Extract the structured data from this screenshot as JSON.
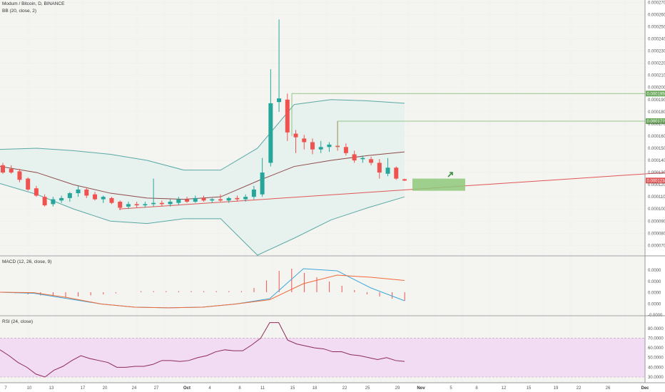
{
  "header": {
    "symbol_line": "Modum / Bitcoin, D, BINANCE",
    "bb_label": "BB (20, close, 2)",
    "macd_label": "MACD (12, 26, close, 9)",
    "rsi_label": "RSI (24, close)"
  },
  "colors": {
    "up": "#26a69a",
    "down": "#ef5350",
    "bb_band": "#5aa9a4",
    "bb_basis": "#8d4a4a",
    "bb_fill": "#e6f2ee",
    "trendline": "#e05555",
    "zone": "#8fc87a",
    "price_line": "#7ab86a",
    "macd_line": "#3fa8d8",
    "signal_line": "#f06a3a",
    "rsi_line": "#8e2a5a",
    "rsi_band": "#f1dcf3",
    "grid": "#eeeeee"
  },
  "chart_data": [
    {
      "type": "candlestick",
      "panel": "price",
      "yaxis_ticks": [
        "0.0002700",
        "0.0002600",
        "0.0002500",
        "0.0002400",
        "0.0002300",
        "0.0002200",
        "0.0002100",
        "0.0002000",
        "0.0001900",
        "0.0001800",
        "0.0001700",
        "0.0001600",
        "0.0001500",
        "0.0001400",
        "0.0001300",
        "0.0001200",
        "0.0001100",
        "0.0001000",
        "0.0000900",
        "0.0000800",
        "0.0000700"
      ],
      "ylim": [
        6.2e-05,
        0.000272
      ],
      "xaxis_ticks": [
        "7",
        "10",
        "13",
        "17",
        "20",
        "24",
        "27",
        "Oct",
        "4",
        "8",
        "11",
        "15",
        "18",
        "22",
        "25",
        "29",
        "Nov",
        "5",
        "8",
        "12",
        "15",
        "19",
        "22",
        "26",
        "Dec"
      ],
      "price_labels": [
        "0.0001950",
        "0.0001723",
        "0.0001234"
      ],
      "candles": [
        {
          "o": 0.000136,
          "h": 0.000138,
          "l": 0.000129,
          "c": 0.00013
        },
        {
          "o": 0.000133,
          "h": 0.000136,
          "l": 0.000129,
          "c": 0.00013
        },
        {
          "o": 0.000131,
          "h": 0.000133,
          "l": 0.000122,
          "c": 0.000124
        },
        {
          "o": 0.000125,
          "h": 0.000126,
          "l": 0.000115,
          "c": 0.000116
        },
        {
          "o": 0.000117,
          "h": 0.000119,
          "l": 0.00011,
          "c": 0.000111
        },
        {
          "o": 0.00011,
          "h": 0.000112,
          "l": 0.000102,
          "c": 0.000103
        },
        {
          "o": 0.000104,
          "h": 0.00011,
          "l": 0.000102,
          "c": 0.000108
        },
        {
          "o": 0.000107,
          "h": 0.000111,
          "l": 0.000105,
          "c": 0.000109
        },
        {
          "o": 0.000109,
          "h": 0.000114,
          "l": 0.000106,
          "c": 0.000113
        },
        {
          "o": 0.000113,
          "h": 0.000119,
          "l": 0.00011,
          "c": 0.000116
        },
        {
          "o": 0.000116,
          "h": 0.000118,
          "l": 0.000109,
          "c": 0.000111
        },
        {
          "o": 0.000112,
          "h": 0.000114,
          "l": 0.000107,
          "c": 0.000108
        },
        {
          "o": 0.000108,
          "h": 0.000111,
          "l": 0.000105,
          "c": 0.00011
        },
        {
          "o": 0.000109,
          "h": 0.00011,
          "l": 0.000104,
          "c": 0.000105
        },
        {
          "o": 0.000106,
          "h": 0.000107,
          "l": 9.9e-05,
          "c": 0.000101
        },
        {
          "o": 0.000102,
          "h": 0.000106,
          "l": 0.0001,
          "c": 0.000104
        },
        {
          "o": 0.000104,
          "h": 0.000106,
          "l": 0.000101,
          "c": 0.000103
        },
        {
          "o": 0.000103,
          "h": 0.000106,
          "l": 0.000101,
          "c": 0.000104
        },
        {
          "o": 0.000104,
          "h": 0.000125,
          "l": 0.000102,
          "c": 0.000105
        },
        {
          "o": 0.000105,
          "h": 0.000107,
          "l": 0.000102,
          "c": 0.000104
        },
        {
          "o": 0.000104,
          "h": 0.000108,
          "l": 0.000102,
          "c": 0.000106
        },
        {
          "o": 0.000105,
          "h": 0.00011,
          "l": 0.000103,
          "c": 0.000108
        },
        {
          "o": 0.000108,
          "h": 0.00011,
          "l": 0.000105,
          "c": 0.000106
        },
        {
          "o": 0.000106,
          "h": 0.000111,
          "l": 0.000105,
          "c": 0.000109
        },
        {
          "o": 0.000109,
          "h": 0.000111,
          "l": 0.000106,
          "c": 0.000107
        },
        {
          "o": 0.000107,
          "h": 0.000109,
          "l": 0.000105,
          "c": 0.000108
        },
        {
          "o": 0.000108,
          "h": 0.000112,
          "l": 0.000106,
          "c": 0.000107
        },
        {
          "o": 0.000107,
          "h": 0.00011,
          "l": 0.000105,
          "c": 0.000109
        },
        {
          "o": 0.000109,
          "h": 0.000111,
          "l": 0.000106,
          "c": 0.000108
        },
        {
          "o": 0.000108,
          "h": 0.000112,
          "l": 0.000106,
          "c": 0.00011
        },
        {
          "o": 0.00011,
          "h": 0.000119,
          "l": 0.000108,
          "c": 0.000116
        },
        {
          "o": 0.000112,
          "h": 0.000142,
          "l": 0.00011,
          "c": 0.00013
        },
        {
          "o": 0.000138,
          "h": 0.000215,
          "l": 0.000135,
          "c": 0.000187
        },
        {
          "o": 0.000188,
          "h": 0.000256,
          "l": 0.00018,
          "c": 0.000191
        },
        {
          "o": 0.00019,
          "h": 0.000195,
          "l": 0.000156,
          "c": 0.000163
        },
        {
          "o": 0.000162,
          "h": 0.000165,
          "l": 0.000146,
          "c": 0.000159
        },
        {
          "o": 0.000158,
          "h": 0.000161,
          "l": 0.000149,
          "c": 0.000155
        },
        {
          "o": 0.000155,
          "h": 0.000158,
          "l": 0.000145,
          "c": 0.000149
        },
        {
          "o": 0.000149,
          "h": 0.000156,
          "l": 0.000146,
          "c": 0.000151
        },
        {
          "o": 0.000151,
          "h": 0.000155,
          "l": 0.000147,
          "c": 0.000153
        },
        {
          "o": 0.000152,
          "h": 0.0001723,
          "l": 0.000148,
          "c": 0.000151
        },
        {
          "o": 0.000151,
          "h": 0.000154,
          "l": 0.000144,
          "c": 0.000146
        },
        {
          "o": 0.000145,
          "h": 0.000148,
          "l": 0.000138,
          "c": 0.00014
        },
        {
          "o": 0.000141,
          "h": 0.000144,
          "l": 0.000138,
          "c": 0.000142
        },
        {
          "o": 0.000141,
          "h": 0.000143,
          "l": 0.000136,
          "c": 0.000138
        },
        {
          "o": 0.000138,
          "h": 0.000141,
          "l": 0.000125,
          "c": 0.00013
        },
        {
          "o": 0.000129,
          "h": 0.000142,
          "l": 0.000127,
          "c": 0.000134
        },
        {
          "o": 0.000134,
          "h": 0.000135,
          "l": 0.000124,
          "c": 0.000125
        },
        {
          "o": 0.0001245,
          "h": 0.000125,
          "l": 0.000123,
          "c": 0.0001234
        }
      ],
      "bollinger": {
        "upper": [
          0.000149,
          0.00015,
          0.000148,
          0.000145,
          0.00014,
          0.000132,
          0.000132,
          0.00015,
          0.000186,
          0.00019,
          0.000189,
          0.000187
        ],
        "basis": [
          0.000135,
          0.00013,
          0.00012,
          0.000113,
          0.000109,
          0.000108,
          0.00011,
          0.000123,
          0.000135,
          0.00014,
          0.000144,
          0.000147
        ],
        "lower": [
          0.000121,
          0.000112,
          0.0001,
          9e-05,
          8.8e-05,
          9.2e-05,
          9.2e-05,
          6.2e-05,
          7.6e-05,
          9.1e-05,
          0.000101,
          0.00011
        ]
      },
      "trendline": [
        [
          0.0001
        ],
        [
          0.00013
        ]
      ]
    },
    {
      "type": "line",
      "panel": "macd",
      "yaxis_ticks": [
        "0.0000",
        "0.0000",
        "0.0000",
        "0.0000",
        "-0.0000"
      ],
      "series": [
        {
          "values": [
            0.0,
            -0.05,
            -0.3,
            -0.55,
            -0.7,
            -0.73,
            -0.7,
            -0.55,
            -0.3,
            1.1,
            1.0,
            0.2,
            -0.4
          ]
        },
        {
          "values": [
            0.0,
            -0.02,
            -0.25,
            -0.55,
            -0.7,
            -0.73,
            -0.7,
            -0.55,
            -0.35,
            0.4,
            0.8,
            0.7,
            0.55
          ]
        }
      ],
      "histogram": [
        0.0,
        -0.05,
        -0.1,
        -0.15,
        -0.2,
        -0.25,
        -0.2,
        -0.15,
        -0.1,
        -0.05,
        0.0,
        0.05,
        0.05,
        0.05,
        0.05,
        0.05,
        0.05,
        0.05,
        0.05,
        0.05,
        0.2,
        0.55,
        1.0,
        1.1,
        0.9,
        0.7,
        0.5,
        0.3,
        0.1,
        -0.1,
        -0.2,
        -0.3,
        -0.4
      ]
    },
    {
      "type": "line",
      "panel": "rsi",
      "yaxis_ticks": [
        "80.0000",
        "70.0000",
        "60.0000",
        "50.0000",
        "40.0000",
        "30.0000"
      ],
      "band": [
        30,
        70
      ],
      "series": [
        {
          "values": [
            58,
            52,
            45,
            40,
            33,
            30,
            37,
            41,
            47,
            52,
            49,
            47,
            45,
            40,
            40,
            41,
            41,
            43,
            47,
            47,
            46,
            47,
            50,
            52,
            56,
            58,
            57,
            57,
            63,
            70,
            86,
            86,
            68,
            64,
            62,
            60,
            59,
            56,
            56,
            53,
            52,
            50,
            48,
            50,
            47,
            46
          ]
        }
      ]
    }
  ]
}
